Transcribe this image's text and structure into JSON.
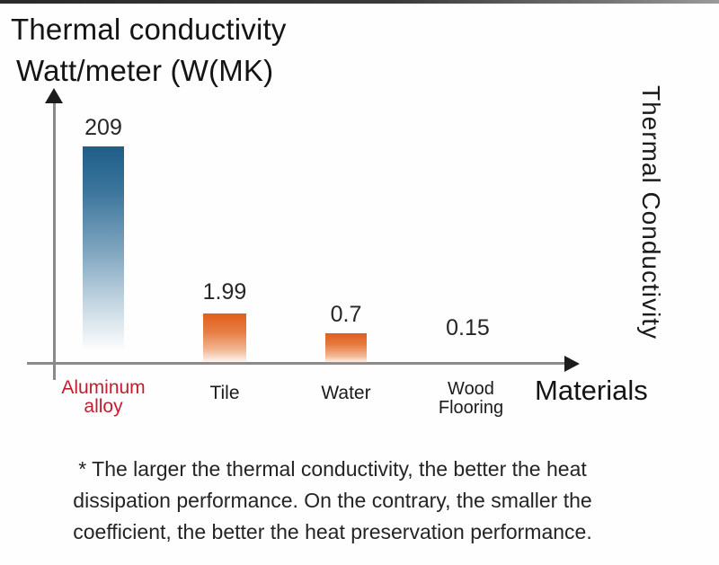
{
  "title": {
    "line1": "Thermal conductivity",
    "line2": "Watt/meter (W(MK)"
  },
  "right_axis_label": "Thermal Conductivity",
  "x_axis_label": "Materials",
  "chart_data": {
    "type": "bar",
    "categories": [
      "Aluminum alloy",
      "Tile",
      "Water",
      "Wood Flooring"
    ],
    "values": [
      209,
      1.99,
      0.7,
      0.15
    ],
    "value_labels": [
      "209",
      "1.99",
      "0.7",
      "0.15"
    ],
    "title": "Thermal conductivity Watt/meter (W(MK)",
    "xlabel": "Materials",
    "ylabel": "Thermal Conductivity",
    "ylim": [
      0,
      209
    ],
    "grid": false,
    "legend": false,
    "bar_colors": [
      "#1e5e87",
      "#e05f1a",
      "#e05f1a",
      "#e05f1a"
    ],
    "bar_style": "vertical gradient fading to white at bottom",
    "highlighted_category": "Aluminum alloy",
    "highlight_text_color": "#c51d30",
    "note": "bar heights are not to linear scale in source image"
  },
  "category_labels": {
    "aluminum_line1": "Aluminum",
    "aluminum_line2": "alloy",
    "tile": "Tile",
    "water": "Water",
    "wood_line1": "Wood",
    "wood_line2": "Flooring"
  },
  "footnote": {
    "line1": "* The larger the thermal conductivity, the better the heat",
    "line2": "dissipation performance. On the contrary, the smaller the",
    "line3": "coefficient, the better the heat preservation performance."
  },
  "colors": {
    "bar_blue_top": "#1e5e87",
    "bar_orange_top": "#e05f1a",
    "highlight_red": "#c51d30",
    "axis_gray": "#8a8a8a",
    "arrow_black": "#1c1c1c",
    "text_black": "#141414"
  }
}
